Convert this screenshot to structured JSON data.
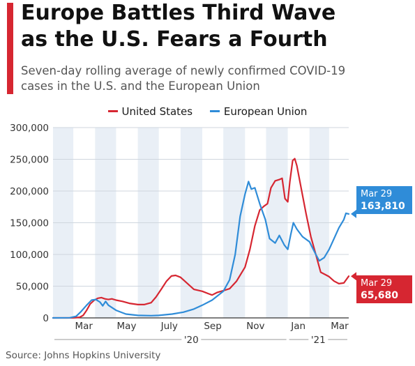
{
  "header": {
    "title_lines": [
      "Europe Battles Third Wave",
      "as the U.S. Fears a Fourth"
    ],
    "subtitle_lines": [
      "Seven-day rolling average of newly confirmed COVID-19",
      "cases in the U.S. and the European Union"
    ]
  },
  "footer": {
    "source": "Source: Johns Hopkins University"
  },
  "colors": {
    "accent": "#d62631",
    "us": "#d62631",
    "eu": "#2f8cd8",
    "band": "#e9eff6"
  },
  "chart_data": {
    "type": "line",
    "title": "Europe Battles Third Wave as the U.S. Fears a Fourth",
    "subtitle": "Seven-day rolling average of newly confirmed COVID-19 cases in the U.S. and the European Union",
    "x_range": [
      "2020-02-01",
      "2021-03-29"
    ],
    "ylim": [
      0,
      300000
    ],
    "y_ticks": [
      0,
      50000,
      100000,
      150000,
      200000,
      250000,
      300000
    ],
    "y_tick_labels": [
      "0",
      "50,000",
      "100,000",
      "150,000",
      "200,000",
      "250,000",
      "300,000"
    ],
    "x_ticks": [
      {
        "date": "2020-03-01",
        "label": "Mar"
      },
      {
        "date": "2020-05-01",
        "label": "May"
      },
      {
        "date": "2020-07-01",
        "label": "July"
      },
      {
        "date": "2020-09-01",
        "label": "Sep"
      },
      {
        "date": "2020-11-01",
        "label": "Nov"
      },
      {
        "date": "2021-01-01",
        "label": "Jan"
      },
      {
        "date": "2021-03-01",
        "label": "Mar"
      }
    ],
    "year_labels": [
      {
        "label": "'20",
        "start": "2020-02-01",
        "end": "2021-01-01"
      },
      {
        "label": "'21",
        "start": "2021-01-01",
        "end": "2021-03-29"
      }
    ],
    "legend": {
      "placement": "top-center"
    },
    "grid": {
      "y": true,
      "alternating_month_bands": true
    },
    "series": [
      {
        "name": "United States",
        "color": "#d62631",
        "points": [
          [
            "2020-02-01",
            0
          ],
          [
            "2020-02-20",
            0
          ],
          [
            "2020-03-01",
            100
          ],
          [
            "2020-03-10",
            1000
          ],
          [
            "2020-03-15",
            4000
          ],
          [
            "2020-03-20",
            12000
          ],
          [
            "2020-03-25",
            22000
          ],
          [
            "2020-03-31",
            28000
          ],
          [
            "2020-04-05",
            31000
          ],
          [
            "2020-04-10",
            32000
          ],
          [
            "2020-04-15",
            30000
          ],
          [
            "2020-04-20",
            29000
          ],
          [
            "2020-04-25",
            30000
          ],
          [
            "2020-05-01",
            28000
          ],
          [
            "2020-05-10",
            26000
          ],
          [
            "2020-05-20",
            23000
          ],
          [
            "2020-06-01",
            21000
          ],
          [
            "2020-06-10",
            21000
          ],
          [
            "2020-06-20",
            24000
          ],
          [
            "2020-06-27",
            33000
          ],
          [
            "2020-07-05",
            46000
          ],
          [
            "2020-07-12",
            58000
          ],
          [
            "2020-07-19",
            66000
          ],
          [
            "2020-07-25",
            67000
          ],
          [
            "2020-08-01",
            64000
          ],
          [
            "2020-08-10",
            55000
          ],
          [
            "2020-08-20",
            45000
          ],
          [
            "2020-09-01",
            42000
          ],
          [
            "2020-09-10",
            38000
          ],
          [
            "2020-09-15",
            36000
          ],
          [
            "2020-09-22",
            40000
          ],
          [
            "2020-10-01",
            43000
          ],
          [
            "2020-10-10",
            46000
          ],
          [
            "2020-10-20",
            58000
          ],
          [
            "2020-11-01",
            80000
          ],
          [
            "2020-11-08",
            108000
          ],
          [
            "2020-11-15",
            145000
          ],
          [
            "2020-11-22",
            170000
          ],
          [
            "2020-11-28",
            176000
          ],
          [
            "2020-12-03",
            180000
          ],
          [
            "2020-12-08",
            205000
          ],
          [
            "2020-12-14",
            216000
          ],
          [
            "2020-12-20",
            218000
          ],
          [
            "2020-12-24",
            220000
          ],
          [
            "2020-12-28",
            188000
          ],
          [
            "2021-01-01",
            183000
          ],
          [
            "2021-01-04",
            215000
          ],
          [
            "2021-01-08",
            248000
          ],
          [
            "2021-01-11",
            251000
          ],
          [
            "2021-01-14",
            240000
          ],
          [
            "2021-01-20",
            205000
          ],
          [
            "2021-01-27",
            165000
          ],
          [
            "2021-02-03",
            128000
          ],
          [
            "2021-02-10",
            100000
          ],
          [
            "2021-02-17",
            72000
          ],
          [
            "2021-02-24",
            68000
          ],
          [
            "2021-03-01",
            65000
          ],
          [
            "2021-03-08",
            58000
          ],
          [
            "2021-03-15",
            54000
          ],
          [
            "2021-03-22",
            55000
          ],
          [
            "2021-03-29",
            65680
          ]
        ],
        "end_label": {
          "date": "Mar 29",
          "value": "65,680"
        }
      },
      {
        "name": "European Union",
        "color": "#2f8cd8",
        "points": [
          [
            "2020-02-01",
            0
          ],
          [
            "2020-02-25",
            200
          ],
          [
            "2020-03-05",
            2500
          ],
          [
            "2020-03-12",
            10000
          ],
          [
            "2020-03-20",
            20000
          ],
          [
            "2020-03-27",
            28000
          ],
          [
            "2020-04-02",
            29000
          ],
          [
            "2020-04-08",
            25000
          ],
          [
            "2020-04-12",
            19000
          ],
          [
            "2020-04-16",
            26000
          ],
          [
            "2020-04-20",
            20000
          ],
          [
            "2020-05-01",
            12000
          ],
          [
            "2020-05-15",
            6000
          ],
          [
            "2020-06-01",
            4000
          ],
          [
            "2020-06-20",
            3500
          ],
          [
            "2020-07-01",
            4000
          ],
          [
            "2020-07-20",
            6000
          ],
          [
            "2020-08-05",
            9000
          ],
          [
            "2020-08-20",
            14000
          ],
          [
            "2020-09-01",
            20000
          ],
          [
            "2020-09-15",
            28000
          ],
          [
            "2020-10-01",
            42000
          ],
          [
            "2020-10-10",
            60000
          ],
          [
            "2020-10-18",
            100000
          ],
          [
            "2020-10-25",
            160000
          ],
          [
            "2020-11-01",
            195000
          ],
          [
            "2020-11-06",
            215000
          ],
          [
            "2020-11-10",
            203000
          ],
          [
            "2020-11-15",
            205000
          ],
          [
            "2020-11-22",
            180000
          ],
          [
            "2020-11-30",
            155000
          ],
          [
            "2020-12-06",
            125000
          ],
          [
            "2020-12-14",
            118000
          ],
          [
            "2020-12-20",
            130000
          ],
          [
            "2020-12-27",
            115000
          ],
          [
            "2021-01-01",
            108000
          ],
          [
            "2021-01-05",
            130000
          ],
          [
            "2021-01-09",
            150000
          ],
          [
            "2021-01-14",
            140000
          ],
          [
            "2021-01-22",
            128000
          ],
          [
            "2021-02-01",
            120000
          ],
          [
            "2021-02-10",
            100000
          ],
          [
            "2021-02-15",
            90000
          ],
          [
            "2021-02-22",
            95000
          ],
          [
            "2021-03-01",
            108000
          ],
          [
            "2021-03-08",
            125000
          ],
          [
            "2021-03-15",
            142000
          ],
          [
            "2021-03-22",
            155000
          ],
          [
            "2021-03-25",
            165000
          ],
          [
            "2021-03-29",
            163810
          ]
        ],
        "end_label": {
          "date": "Mar 29",
          "value": "163,810"
        }
      }
    ]
  }
}
